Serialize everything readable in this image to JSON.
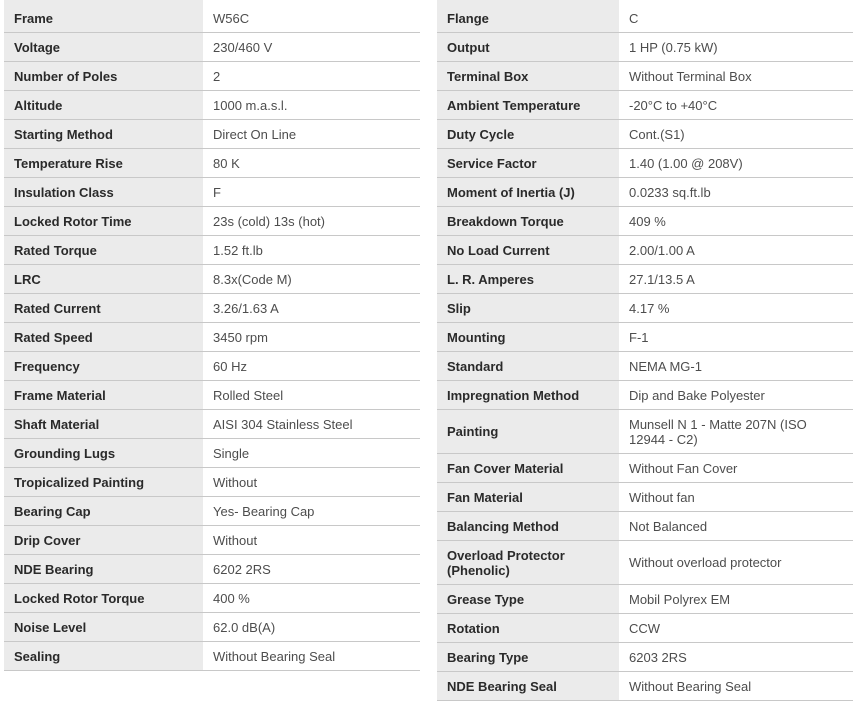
{
  "colors": {
    "label_cell_background": "#ebebeb",
    "row_divider": "#c8c8c8",
    "label_text": "#2a2a2a",
    "value_text": "#4d4d4d",
    "page_background": "#ffffff"
  },
  "left_table": {
    "rows": [
      {
        "label": "Frame",
        "value": "W56C"
      },
      {
        "label": "Voltage",
        "value": "230/460 V"
      },
      {
        "label": "Number of Poles",
        "value": "2"
      },
      {
        "label": "Altitude",
        "value": "1000 m.a.s.l."
      },
      {
        "label": "Starting Method",
        "value": "Direct On Line"
      },
      {
        "label": "Temperature Rise",
        "value": "80 K"
      },
      {
        "label": "Insulation Class",
        "value": "F"
      },
      {
        "label": "Locked Rotor Time",
        "value": "23s (cold) 13s (hot)"
      },
      {
        "label": "Rated Torque",
        "value": "1.52 ft.lb"
      },
      {
        "label": "LRC",
        "value": "8.3x(Code M)"
      },
      {
        "label": "Rated Current",
        "value": "3.26/1.63 A"
      },
      {
        "label": "Rated Speed",
        "value": "3450 rpm"
      },
      {
        "label": "Frequency",
        "value": "60 Hz"
      },
      {
        "label": "Frame Material",
        "value": "Rolled Steel"
      },
      {
        "label": "Shaft Material",
        "value": "AISI 304 Stainless Steel"
      },
      {
        "label": "Grounding Lugs",
        "value": "Single"
      },
      {
        "label": "Tropicalized Painting",
        "value": "Without"
      },
      {
        "label": "Bearing Cap",
        "value": "Yes- Bearing Cap"
      },
      {
        "label": "Drip Cover",
        "value": "Without"
      },
      {
        "label": "NDE Bearing",
        "value": "6202 2RS"
      },
      {
        "label": "Locked Rotor Torque",
        "value": "400 %"
      },
      {
        "label": "Noise Level",
        "value": "62.0 dB(A)"
      },
      {
        "label": "Sealing",
        "value": "Without Bearing Seal"
      }
    ]
  },
  "right_table": {
    "rows": [
      {
        "label": "Flange",
        "value": "C"
      },
      {
        "label": "Output",
        "value": "1 HP (0.75 kW)"
      },
      {
        "label": "Terminal Box",
        "value": "Without Terminal Box"
      },
      {
        "label": "Ambient Temperature",
        "value": "-20°C to +40°C"
      },
      {
        "label": "Duty Cycle",
        "value": "Cont.(S1)"
      },
      {
        "label": "Service Factor",
        "value": "1.40 (1.00 @ 208V)"
      },
      {
        "label": "Moment of Inertia (J)",
        "value": "0.0233 sq.ft.lb"
      },
      {
        "label": "Breakdown Torque",
        "value": "409 %"
      },
      {
        "label": "No Load Current",
        "value": "2.00/1.00 A"
      },
      {
        "label": "L. R. Amperes",
        "value": "27.1/13.5 A"
      },
      {
        "label": "Slip",
        "value": "4.17 %"
      },
      {
        "label": "Mounting",
        "value": "F-1"
      },
      {
        "label": "Standard",
        "value": "NEMA MG-1"
      },
      {
        "label": "Impregnation Method",
        "value": "Dip and Bake Polyester"
      },
      {
        "label": "Painting",
        "value": "Munsell N 1 - Matte 207N (ISO 12944 - C2)"
      },
      {
        "label": "Fan Cover Material",
        "value": "Without Fan Cover"
      },
      {
        "label": "Fan Material",
        "value": "Without fan"
      },
      {
        "label": "Balancing Method",
        "value": "Not Balanced"
      },
      {
        "label": "Overload Protector (Phenolic)",
        "value": "Without overload protector"
      },
      {
        "label": "Grease Type",
        "value": "Mobil Polyrex EM"
      },
      {
        "label": "Rotation",
        "value": "CCW"
      },
      {
        "label": "Bearing Type",
        "value": "6203 2RS"
      },
      {
        "label": "NDE Bearing Seal",
        "value": "Without Bearing Seal"
      }
    ]
  }
}
